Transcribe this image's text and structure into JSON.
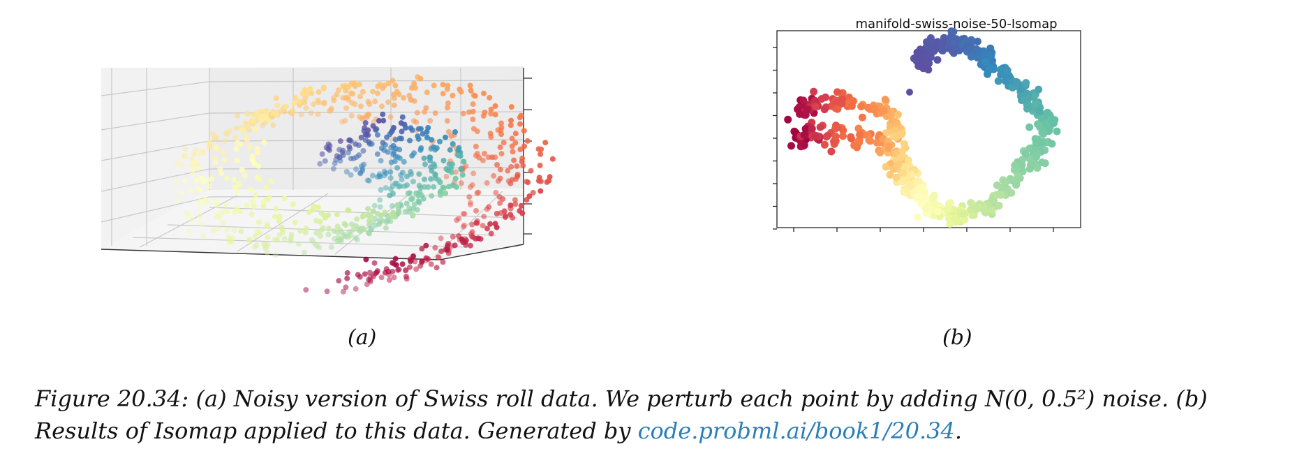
{
  "chart_data": [
    {
      "type": "scatter",
      "projection": "3d",
      "title": "",
      "panel_label": "(a)",
      "colormap": "Spectral",
      "grid": true,
      "points": [],
      "tick_labels": "hidden"
    },
    {
      "type": "scatter",
      "title": "manifold-swiss-noise-50-Isomap",
      "panel_label": "(b)",
      "colormap": "Spectral",
      "grid": false,
      "tick_labels": "hidden",
      "x_ticks": 7,
      "y_ticks": 9
    }
  ],
  "caption": {
    "text": "Figure 20.34: (a) Noisy version of Swiss roll data. We perturb each point by adding N(0, 0.5²) noise. (b) Results of Isomap applied to this data. Generated by ",
    "link_text": "code.probml.ai/book1/20.34",
    "tail": "."
  },
  "colors": {
    "link": "#2a7fb8"
  }
}
